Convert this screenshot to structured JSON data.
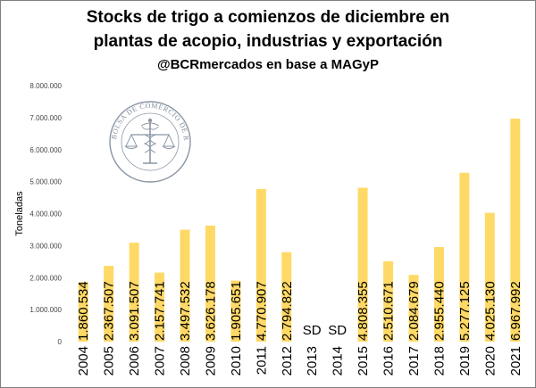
{
  "chart_data": {
    "type": "bar",
    "title_lines": [
      "Stocks de trigo a comienzos de diciembre en",
      "plantas de acopio, industrias y exportación"
    ],
    "subtitle": "@BCRmercados en base a MAGyP",
    "ylabel": "Toneladas",
    "ylim": [
      0,
      8000000
    ],
    "yticks": [
      0,
      1000000,
      2000000,
      3000000,
      4000000,
      5000000,
      6000000,
      7000000,
      8000000
    ],
    "ytick_labels": [
      "0",
      "1.000.000",
      "2.000.000",
      "3.000.000",
      "4.000.000",
      "5.000.000",
      "6.000.000",
      "7.000.000",
      "8.000.000"
    ],
    "grid": false,
    "bar_color": "#ffd966",
    "categories": [
      "2004",
      "2005",
      "2006",
      "2007",
      "2008",
      "2009",
      "2010",
      "2011",
      "2012",
      "2013",
      "2014",
      "2015",
      "2016",
      "2017",
      "2018",
      "2019",
      "2020",
      "2021"
    ],
    "values": [
      1860534,
      2367507,
      3091507,
      2157741,
      3497532,
      3626178,
      1905651,
      4770907,
      2794822,
      null,
      null,
      4808355,
      2510671,
      2084679,
      2955440,
      5277125,
      4025130,
      6967992
    ],
    "value_labels": [
      "1.860.534",
      "2.367.507",
      "3.091.507",
      "2.157.741",
      "3.497.532",
      "3.626.178",
      "1.905.651",
      "4.770.907",
      "2.794.822",
      "SD",
      "SD",
      "4.808.355",
      "2.510.671",
      "2.084.679",
      "2.955.440",
      "5.277.125",
      "4.025.130",
      "6.967.992"
    ]
  },
  "logo": {
    "text": "BOLSA DE COMERCIO DE ROSARIO",
    "color": "#7f8c9a"
  }
}
